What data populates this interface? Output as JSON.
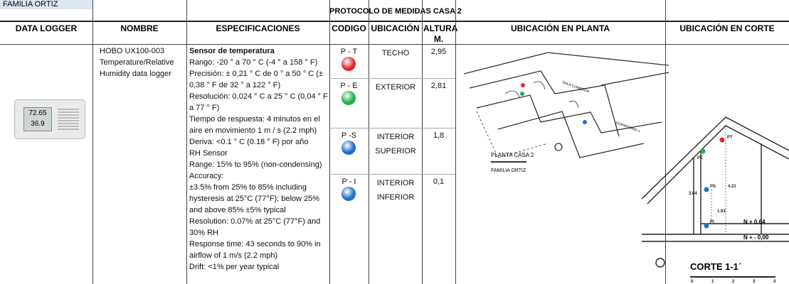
{
  "header": {
    "family": "FAMILIA ORTIZ",
    "title": "PROTOCOLO DE MEDIDAS CASA 2"
  },
  "table": {
    "columns": [
      "DATA LOGGER",
      "NOMBRE",
      "ESPECIFICACIONES",
      "CODIGO",
      "UBICACIÓN",
      "ALTURA M.",
      "UBICACIÓN EN PLANTA",
      "UBICACIÓN EN CORTE"
    ],
    "logger": {
      "display": [
        "72.65",
        "36.9"
      ]
    },
    "name": "HOBO UX100-003 Temperature/Relative Humidity data logger",
    "spec": {
      "title": "Sensor de temperatura",
      "lines": [
        "Rango: -20 ° a 70 ° C (-4 ° a 158 ° F)",
        "Precisión: ± 0,21 ° C de 0 ° a 50 ° C (± 0,38 ° F de 32 ° a 122 ° F)",
        "Resolución: 0,024 ° C a 25 ° C (0,04 ° F a 77 ° F)",
        "Tiempo de respuesta: 4 minutos en el aire en movimiento 1 m / s (2.2 mph)",
        "Deriva: <0.1 ° C (0.18 ° F) por año",
        "RH Sensor",
        "Range: 15% to 95% (non-condensing)",
        "Accuracy:",
        "±3.5% from 25% to 85% including hysteresis at 25°C (77°F); below 25% and above 85% ±5% typical",
        "Resolution: 0.07% at 25°C (77°F) and 30% RH",
        "Response time: 43 seconds to 90% in airflow of 1 m/s (2.2 mph)",
        "Drift: <1% per year typical"
      ]
    },
    "rows": [
      {
        "code": "P - T",
        "location": "TECHO",
        "height": "2,95",
        "color": "#e3262b"
      },
      {
        "code": "P - E",
        "location": "EXTERIOR",
        "height": "2,81",
        "color": "#21ad4b"
      },
      {
        "code": "P -S",
        "location": "INTERIOR SUPERIOR",
        "height": "1,8",
        "color": "#1f6fc6"
      },
      {
        "code": "P - I",
        "location": "INTERIOR INFERIOR",
        "height": "0,1",
        "color": "#1f6fc6"
      }
    ],
    "plan": {
      "title": "PLANTA CASA 2",
      "subtitle": "FAMILIA ORTIZ",
      "room1": "SALA COMEDOR",
      "room2": "DORMITORIO 1"
    },
    "section": {
      "title": "CORTE 1-1´",
      "level1": "N + 0.64",
      "level0": "N + - 0,00",
      "labels": [
        "PT",
        "PE",
        "PS",
        "PI"
      ],
      "dims": [
        "4.21",
        "3.84",
        "1.93"
      ],
      "scale": [
        "0",
        "1",
        "2",
        "3",
        "4"
      ]
    }
  }
}
